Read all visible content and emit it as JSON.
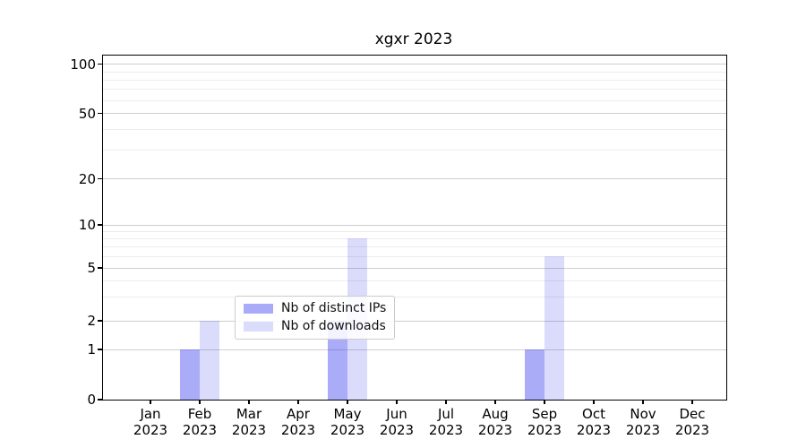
{
  "title": "xgxr 2023",
  "chart_data": {
    "type": "bar",
    "title": "xgxr 2023",
    "categories": [
      "Jan 2023",
      "Feb 2023",
      "Mar 2023",
      "Apr 2023",
      "May 2023",
      "Jun 2023",
      "Jul 2023",
      "Aug 2023",
      "Sep 2023",
      "Oct 2023",
      "Nov 2023",
      "Dec 2023"
    ],
    "series": [
      {
        "name": "Nb of distinct IPs",
        "fill": "rgba(43,48,238,0.40)",
        "solid_color": "#a9abf8",
        "values": [
          0,
          1,
          0,
          0,
          2,
          0,
          0,
          0,
          1,
          0,
          0,
          0
        ]
      },
      {
        "name": "Nb of downloads",
        "fill": "rgba(43,48,238,0.17)",
        "solid_color": "#dbdcfb",
        "values": [
          0,
          2,
          0,
          0,
          8,
          0,
          0,
          0,
          6,
          0,
          0,
          0
        ]
      }
    ],
    "xlabel": "",
    "ylabel": "",
    "y_ticks": [
      0,
      1,
      2,
      5,
      10,
      20,
      50,
      100
    ],
    "y_minor_ticks": [
      3,
      4,
      6,
      7,
      8,
      9,
      30,
      40,
      60,
      70,
      80,
      90
    ],
    "ylim": [
      0,
      100
    ],
    "scale": "symlog",
    "grid": true,
    "legend_position": "lower center inside",
    "colors": {
      "axis": "#000000",
      "grid_major": "#cfcfcf",
      "grid_minor": "#ececec",
      "background": "#ffffff"
    }
  }
}
